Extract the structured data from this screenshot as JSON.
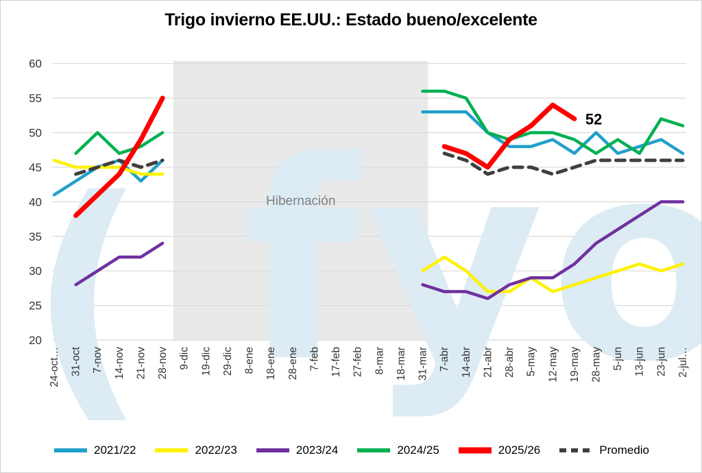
{
  "title": "Trigo invierno EE.UU.: Estado bueno/excelente",
  "annotations": {
    "last_value_label": "52",
    "hibernation_label": "Hibernación",
    "watermark": "fyo",
    "watermark_prefix": "("
  },
  "colors": {
    "grid": "#d9d9d9",
    "hibernation_box": "#e9e9e9",
    "watermark": "#dcebf4",
    "axis_text": "#333333",
    "annotation_text": "#000000",
    "hibernation_text": "#808080"
  },
  "chart_data": {
    "type": "line",
    "title": "Trigo invierno EE.UU.: Estado bueno/excelente",
    "xlabel": "",
    "ylabel": "",
    "ylim": [
      20,
      60
    ],
    "y_ticks": [
      60,
      55,
      50,
      45,
      40,
      35,
      30,
      25,
      20
    ],
    "grid": true,
    "legend_position": "bottom",
    "categories": [
      "24-oct…",
      "31-oct",
      "7-nov",
      "14-nov",
      "21-nov",
      "28-nov",
      "9-dic",
      "19-dic",
      "29-dic",
      "8-ene",
      "18-ene",
      "28-ene",
      "7-feb",
      "17-feb",
      "27-feb",
      "8-mar",
      "18-mar",
      "31-mar",
      "7-abr",
      "14-abr",
      "21-abr",
      "28-abr",
      "5-may",
      "12-may",
      "19-may",
      "28-may",
      "5-jun",
      "13-jun",
      "23-jun",
      "2-jul…"
    ],
    "hibernation_region": {
      "label": "Hibernación",
      "from_category": "9-dic",
      "to_category": "31-mar"
    },
    "series": [
      {
        "name": "2021/22",
        "color": "#21a0c9",
        "style": "solid",
        "width": 4.5,
        "values": [
          41,
          43,
          45,
          46,
          43,
          46,
          null,
          null,
          null,
          null,
          null,
          null,
          null,
          null,
          null,
          null,
          null,
          53,
          53,
          53,
          50,
          48,
          48,
          49,
          47,
          50,
          47,
          48,
          49,
          47
        ]
      },
      {
        "name": "2022/23",
        "color": "#fff100",
        "style": "solid",
        "width": 4.5,
        "values": [
          46,
          45,
          45,
          45,
          44,
          44,
          null,
          null,
          null,
          null,
          null,
          null,
          null,
          null,
          null,
          null,
          null,
          30,
          32,
          30,
          27,
          27,
          29,
          27,
          28,
          29,
          30,
          31,
          30,
          31
        ]
      },
      {
        "name": "2023/24",
        "color": "#7030a0",
        "style": "solid",
        "width": 4.5,
        "values": [
          null,
          28,
          30,
          32,
          32,
          34,
          null,
          null,
          null,
          null,
          null,
          null,
          null,
          null,
          null,
          null,
          null,
          28,
          27,
          27,
          26,
          28,
          29,
          29,
          31,
          34,
          36,
          38,
          40,
          40
        ]
      },
      {
        "name": "2024/25",
        "color": "#00b050",
        "style": "solid",
        "width": 4.5,
        "values": [
          null,
          47,
          50,
          47,
          48,
          50,
          null,
          null,
          null,
          null,
          null,
          null,
          null,
          null,
          null,
          null,
          null,
          56,
          56,
          55,
          50,
          49,
          50,
          50,
          49,
          47,
          49,
          47,
          52,
          51
        ]
      },
      {
        "name": "Promedio",
        "color": "#3f3f3f",
        "style": "dashed",
        "width": 5,
        "values": [
          null,
          44,
          45,
          46,
          45,
          46,
          null,
          null,
          null,
          null,
          null,
          null,
          null,
          null,
          null,
          null,
          null,
          null,
          47,
          46,
          44,
          45,
          45,
          44,
          45,
          46,
          46,
          46,
          46,
          46
        ]
      },
      {
        "name": "2025/26",
        "color": "#ff0000",
        "style": "solid",
        "width": 7,
        "values": [
          null,
          38,
          41,
          44,
          49,
          55,
          null,
          null,
          null,
          null,
          null,
          null,
          null,
          null,
          null,
          null,
          null,
          null,
          48,
          47,
          45,
          49,
          51,
          54,
          52,
          null,
          null,
          null,
          null,
          null
        ]
      }
    ],
    "legend_order": [
      "2021/22",
      "2022/23",
      "2023/24",
      "2024/25",
      "2025/26",
      "Promedio"
    ],
    "annotation": {
      "text": "52",
      "series": "2025/26",
      "category": "19-may",
      "value": 52
    }
  }
}
